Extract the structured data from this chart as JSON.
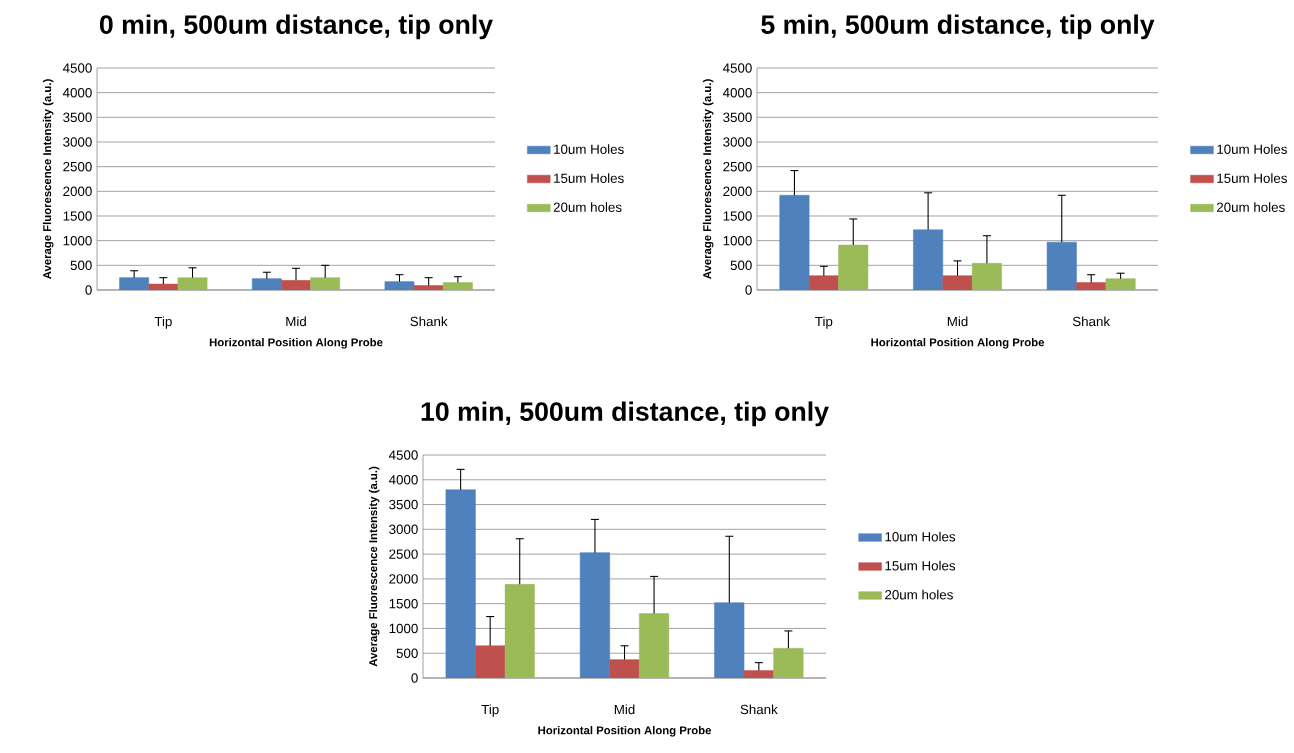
{
  "chart_data": [
    {
      "type": "bar",
      "title": "0 min, 500um distance, tip only",
      "xlabel": "Horizontal Position Along Probe",
      "ylabel": "Average Fluorescence Intensity (a.u.)",
      "categories": [
        "Tip",
        "Mid",
        "Shank"
      ],
      "series": [
        {
          "name": "10um Holes",
          "color": "#4f81bd",
          "values": [
            250,
            230,
            170
          ],
          "errors": [
            [
              250,
              390
            ],
            [
              230,
              360
            ],
            [
              170,
              310
            ]
          ]
        },
        {
          "name": "15um Holes",
          "color": "#c0504d",
          "values": [
            120,
            200,
            90
          ],
          "errors": [
            [
              120,
              250
            ],
            [
              200,
              440
            ],
            [
              90,
              250
            ]
          ]
        },
        {
          "name": "20um holes",
          "color": "#9bbb59",
          "values": [
            250,
            250,
            150
          ],
          "errors": [
            [
              250,
              450
            ],
            [
              250,
              500
            ],
            [
              150,
              270
            ]
          ]
        }
      ],
      "ylim": [
        0,
        4500
      ],
      "yticks": [
        0,
        500,
        1000,
        1500,
        2000,
        2500,
        3000,
        3500,
        4000,
        4500
      ],
      "grid": "y",
      "legend": "right"
    },
    {
      "type": "bar",
      "title": "5 min, 500um distance, tip only",
      "xlabel": "Horizontal Position Along Probe",
      "ylabel": "Average Fluorescence Intensity (a.u.)",
      "categories": [
        "Tip",
        "Mid",
        "Shank"
      ],
      "series": [
        {
          "name": "10um Holes",
          "color": "#4f81bd",
          "values": [
            1920,
            1220,
            970
          ],
          "errors": [
            [
              1920,
              2420
            ],
            [
              1220,
              1970
            ],
            [
              970,
              1920
            ]
          ]
        },
        {
          "name": "15um Holes",
          "color": "#c0504d",
          "values": [
            290,
            290,
            150
          ],
          "errors": [
            [
              290,
              480
            ],
            [
              290,
              590
            ],
            [
              150,
              310
            ]
          ]
        },
        {
          "name": "20um holes",
          "color": "#9bbb59",
          "values": [
            910,
            540,
            230
          ],
          "errors": [
            [
              910,
              1440
            ],
            [
              540,
              1100
            ],
            [
              230,
              340
            ]
          ]
        }
      ],
      "ylim": [
        0,
        4500
      ],
      "yticks": [
        0,
        500,
        1000,
        1500,
        2000,
        2500,
        3000,
        3500,
        4000,
        4500
      ],
      "grid": "y",
      "legend": "right"
    },
    {
      "type": "bar",
      "title": "10 min, 500um distance, tip only",
      "xlabel": "Horizontal Position Along Probe",
      "ylabel": "Average Fluorescence Intensity (a.u.)",
      "categories": [
        "Tip",
        "Mid",
        "Shank"
      ],
      "series": [
        {
          "name": "10um Holes",
          "color": "#4f81bd",
          "values": [
            3800,
            2530,
            1520
          ],
          "errors": [
            [
              3800,
              4210
            ],
            [
              2530,
              3200
            ],
            [
              1520,
              2860
            ]
          ]
        },
        {
          "name": "15um Holes",
          "color": "#c0504d",
          "values": [
            650,
            370,
            150
          ],
          "errors": [
            [
              650,
              1240
            ],
            [
              370,
              650
            ],
            [
              150,
              310
            ]
          ]
        },
        {
          "name": "20um holes",
          "color": "#9bbb59",
          "values": [
            1890,
            1300,
            600
          ],
          "errors": [
            [
              1890,
              2810
            ],
            [
              1300,
              2050
            ],
            [
              600,
              950
            ]
          ]
        }
      ],
      "ylim": [
        0,
        4500
      ],
      "yticks": [
        0,
        500,
        1000,
        1500,
        2000,
        2500,
        3000,
        3500,
        4000,
        4500
      ],
      "grid": "y",
      "legend": "right"
    }
  ]
}
